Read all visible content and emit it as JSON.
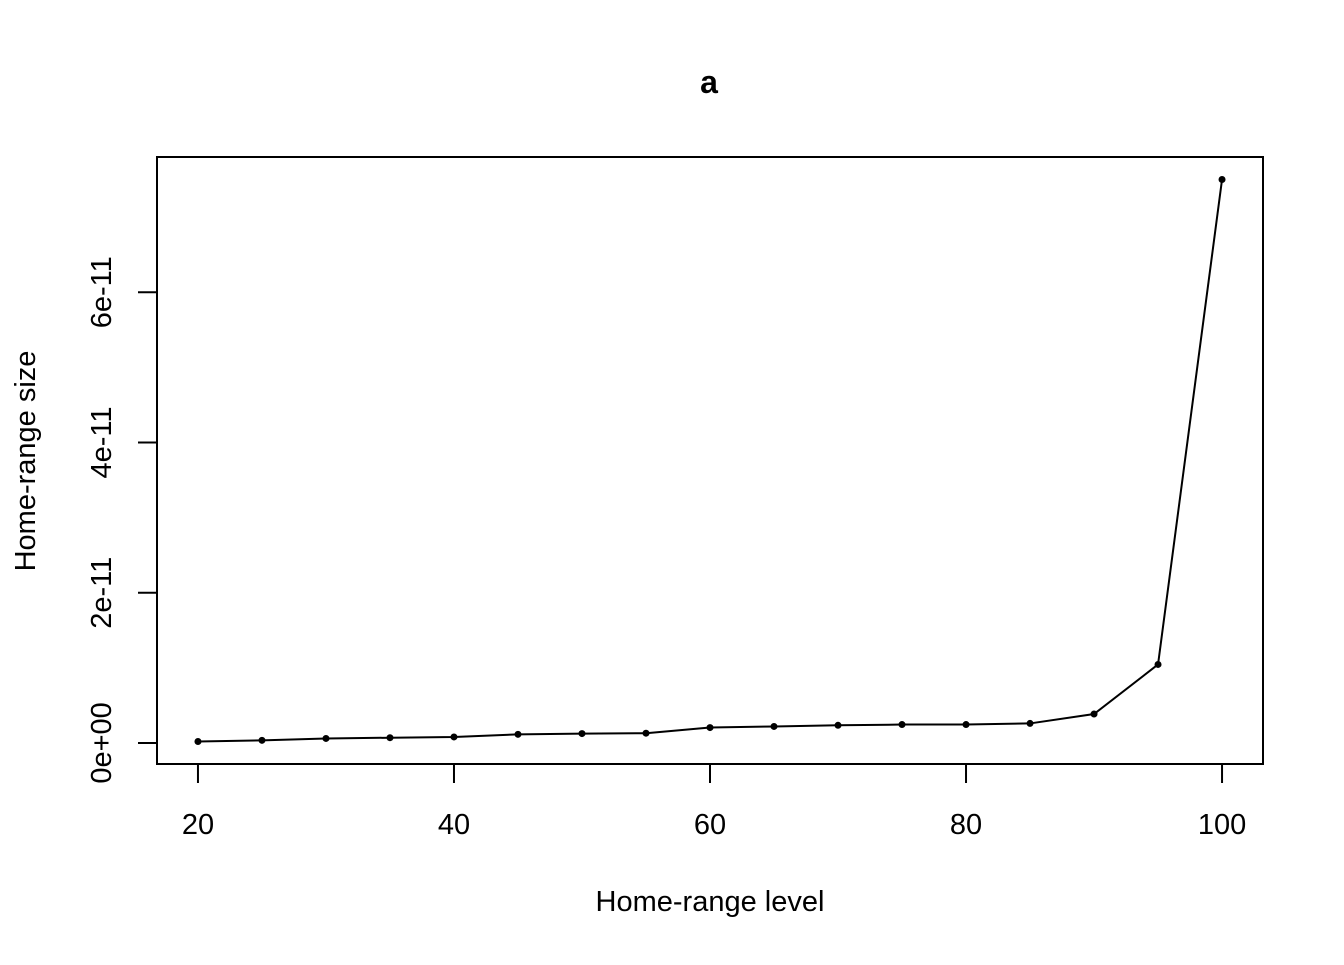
{
  "chart_data": {
    "type": "line",
    "title": "a",
    "xlabel": "Home-range level",
    "ylabel": "Home-range size",
    "x": [
      20,
      25,
      30,
      35,
      40,
      45,
      50,
      55,
      60,
      65,
      70,
      75,
      80,
      85,
      90,
      95,
      100
    ],
    "series": [
      {
        "values": [
          2e-13,
          3.5e-13,
          6e-13,
          7e-13,
          8e-13,
          1.15e-12,
          1.25e-12,
          1.3e-12,
          2.05e-12,
          2.2e-12,
          2.35e-12,
          2.45e-12,
          2.45e-12,
          2.6e-12,
          3.85e-12,
          1.045e-11,
          7.5e-11
        ]
      }
    ],
    "xlim": [
      16.8,
      103.2
    ],
    "ylim": [
      -2.8e-12,
      7.8e-11
    ],
    "xticks": [
      20,
      40,
      60,
      80,
      100
    ],
    "xtick_labels": [
      "20",
      "40",
      "60",
      "80",
      "100"
    ],
    "yticks": [
      0,
      2e-11,
      4e-11,
      6e-11
    ],
    "ytick_labels": [
      "0e+00",
      "2e-11",
      "4e-11",
      "6e-11"
    ],
    "grid": false,
    "legend": "none",
    "markers": "points",
    "colors": {
      "line": "#000000",
      "frame": "#000000",
      "background": "#ffffff"
    }
  }
}
